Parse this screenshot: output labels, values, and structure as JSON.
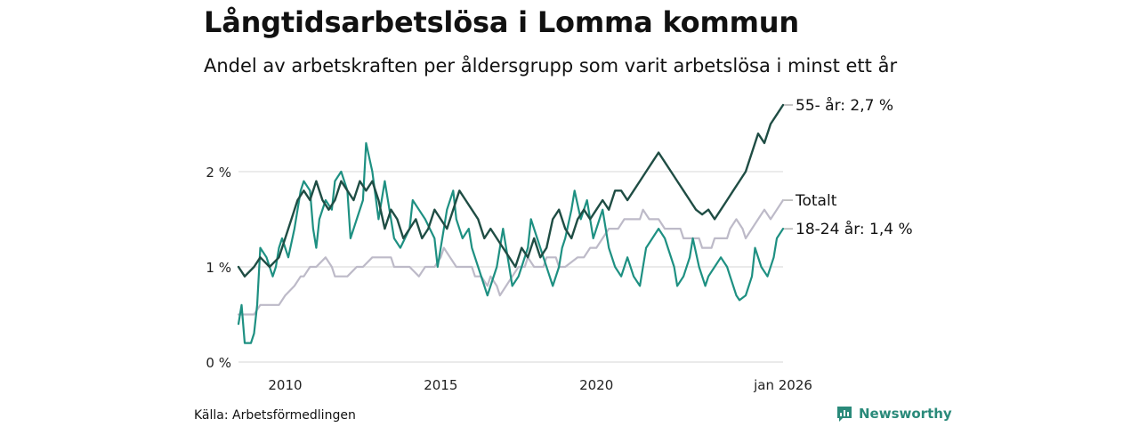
{
  "title": "Långtidsarbetslösa i Lomma kommun",
  "subtitle": "Andel av arbetskraften per åldersgrupp som varit arbetslösa i minst ett år",
  "source": "Källa: Arbetsförmedlingen",
  "brand": "Newsworthy",
  "colors": {
    "age55": "#1f4d44",
    "total": "#bdbac8",
    "age18_24": "#1e9082",
    "grid": "#dddddd",
    "axis_text": "#222222"
  },
  "chart_data": {
    "type": "line",
    "title": "Långtidsarbetslösa i Lomma kommun",
    "xlabel": "",
    "ylabel": "",
    "xlim": [
      2008.5,
      2026.0
    ],
    "ylim": [
      0,
      2.7
    ],
    "y_ticks": [
      {
        "value": 0,
        "label": "0 %"
      },
      {
        "value": 1,
        "label": "1 %"
      },
      {
        "value": 2,
        "label": "2 %"
      }
    ],
    "x_ticks": [
      {
        "value": 2010,
        "label": "2010"
      },
      {
        "value": 2015,
        "label": "2015"
      },
      {
        "value": 2020,
        "label": "2020"
      },
      {
        "value": 2026,
        "label": "jan 2026"
      }
    ],
    "series": [
      {
        "name": "Totalt",
        "label": "Totalt",
        "color_key": "total",
        "points": [
          [
            2008.5,
            0.5
          ],
          [
            2009.0,
            0.5
          ],
          [
            2009.2,
            0.6
          ],
          [
            2009.8,
            0.6
          ],
          [
            2010.0,
            0.7
          ],
          [
            2010.3,
            0.8
          ],
          [
            2010.5,
            0.9
          ],
          [
            2010.6,
            0.9
          ],
          [
            2010.8,
            1.0
          ],
          [
            2011.0,
            1.0
          ],
          [
            2011.3,
            1.1
          ],
          [
            2011.5,
            1.0
          ],
          [
            2011.6,
            0.9
          ],
          [
            2012.0,
            0.9
          ],
          [
            2012.3,
            1.0
          ],
          [
            2012.5,
            1.0
          ],
          [
            2012.8,
            1.1
          ],
          [
            2013.0,
            1.1
          ],
          [
            2013.4,
            1.1
          ],
          [
            2013.5,
            1.0
          ],
          [
            2014.0,
            1.0
          ],
          [
            2014.3,
            0.9
          ],
          [
            2014.5,
            1.0
          ],
          [
            2014.8,
            1.0
          ],
          [
            2015.0,
            1.1
          ],
          [
            2015.1,
            1.2
          ],
          [
            2015.3,
            1.1
          ],
          [
            2015.5,
            1.0
          ],
          [
            2015.8,
            1.0
          ],
          [
            2016.0,
            1.0
          ],
          [
            2016.1,
            0.9
          ],
          [
            2016.3,
            0.9
          ],
          [
            2016.5,
            0.8
          ],
          [
            2016.6,
            0.9
          ],
          [
            2016.8,
            0.8
          ],
          [
            2016.9,
            0.7
          ],
          [
            2017.1,
            0.8
          ],
          [
            2017.3,
            0.9
          ],
          [
            2017.5,
            1.0
          ],
          [
            2017.7,
            1.0
          ],
          [
            2017.8,
            1.1
          ],
          [
            2018.0,
            1.0
          ],
          [
            2018.3,
            1.0
          ],
          [
            2018.4,
            1.1
          ],
          [
            2018.7,
            1.1
          ],
          [
            2018.8,
            1.0
          ],
          [
            2019.0,
            1.0
          ],
          [
            2019.4,
            1.1
          ],
          [
            2019.6,
            1.1
          ],
          [
            2019.8,
            1.2
          ],
          [
            2020.0,
            1.2
          ],
          [
            2020.2,
            1.3
          ],
          [
            2020.4,
            1.4
          ],
          [
            2020.7,
            1.4
          ],
          [
            2020.9,
            1.5
          ],
          [
            2021.4,
            1.5
          ],
          [
            2021.5,
            1.6
          ],
          [
            2021.7,
            1.5
          ],
          [
            2022.0,
            1.5
          ],
          [
            2022.2,
            1.4
          ],
          [
            2022.7,
            1.4
          ],
          [
            2022.8,
            1.3
          ],
          [
            2023.3,
            1.3
          ],
          [
            2023.4,
            1.2
          ],
          [
            2023.7,
            1.2
          ],
          [
            2023.8,
            1.3
          ],
          [
            2024.2,
            1.3
          ],
          [
            2024.3,
            1.4
          ],
          [
            2024.5,
            1.5
          ],
          [
            2024.7,
            1.4
          ],
          [
            2024.8,
            1.3
          ],
          [
            2025.0,
            1.4
          ],
          [
            2025.2,
            1.5
          ],
          [
            2025.4,
            1.6
          ],
          [
            2025.6,
            1.5
          ],
          [
            2025.8,
            1.6
          ],
          [
            2026.0,
            1.7
          ]
        ]
      },
      {
        "name": "18-24 år",
        "label": "18-24 år: 1,4 %",
        "color_key": "age18_24",
        "points": [
          [
            2008.5,
            0.4
          ],
          [
            2008.6,
            0.6
          ],
          [
            2008.7,
            0.2
          ],
          [
            2008.9,
            0.2
          ],
          [
            2009.0,
            0.3
          ],
          [
            2009.1,
            0.6
          ],
          [
            2009.2,
            1.2
          ],
          [
            2009.4,
            1.1
          ],
          [
            2009.6,
            0.9
          ],
          [
            2009.7,
            1.0
          ],
          [
            2009.8,
            1.2
          ],
          [
            2009.9,
            1.3
          ],
          [
            2010.0,
            1.2
          ],
          [
            2010.1,
            1.1
          ],
          [
            2010.3,
            1.4
          ],
          [
            2010.5,
            1.8
          ],
          [
            2010.6,
            1.9
          ],
          [
            2010.8,
            1.8
          ],
          [
            2010.9,
            1.4
          ],
          [
            2011.0,
            1.2
          ],
          [
            2011.1,
            1.5
          ],
          [
            2011.3,
            1.7
          ],
          [
            2011.5,
            1.6
          ],
          [
            2011.6,
            1.9
          ],
          [
            2011.8,
            2.0
          ],
          [
            2012.0,
            1.8
          ],
          [
            2012.1,
            1.3
          ],
          [
            2012.3,
            1.5
          ],
          [
            2012.5,
            1.7
          ],
          [
            2012.6,
            2.3
          ],
          [
            2012.8,
            2.0
          ],
          [
            2013.0,
            1.5
          ],
          [
            2013.2,
            1.9
          ],
          [
            2013.3,
            1.7
          ],
          [
            2013.5,
            1.3
          ],
          [
            2013.7,
            1.2
          ],
          [
            2014.0,
            1.4
          ],
          [
            2014.1,
            1.7
          ],
          [
            2014.3,
            1.6
          ],
          [
            2014.5,
            1.5
          ],
          [
            2014.8,
            1.3
          ],
          [
            2014.9,
            1.0
          ],
          [
            2015.0,
            1.2
          ],
          [
            2015.2,
            1.6
          ],
          [
            2015.4,
            1.8
          ],
          [
            2015.5,
            1.5
          ],
          [
            2015.7,
            1.3
          ],
          [
            2015.9,
            1.4
          ],
          [
            2016.0,
            1.2
          ],
          [
            2016.2,
            1.0
          ],
          [
            2016.4,
            0.8
          ],
          [
            2016.5,
            0.7
          ],
          [
            2016.6,
            0.8
          ],
          [
            2016.8,
            1.0
          ],
          [
            2016.9,
            1.2
          ],
          [
            2017.0,
            1.4
          ],
          [
            2017.2,
            1.0
          ],
          [
            2017.3,
            0.8
          ],
          [
            2017.5,
            0.9
          ],
          [
            2017.6,
            1.0
          ],
          [
            2017.8,
            1.2
          ],
          [
            2017.9,
            1.5
          ],
          [
            2018.1,
            1.3
          ],
          [
            2018.3,
            1.1
          ],
          [
            2018.5,
            0.9
          ],
          [
            2018.6,
            0.8
          ],
          [
            2018.8,
            1.0
          ],
          [
            2018.9,
            1.2
          ],
          [
            2019.0,
            1.3
          ],
          [
            2019.2,
            1.6
          ],
          [
            2019.3,
            1.8
          ],
          [
            2019.5,
            1.5
          ],
          [
            2019.7,
            1.7
          ],
          [
            2019.8,
            1.5
          ],
          [
            2019.9,
            1.3
          ],
          [
            2020.1,
            1.5
          ],
          [
            2020.2,
            1.6
          ],
          [
            2020.4,
            1.2
          ],
          [
            2020.6,
            1.0
          ],
          [
            2020.8,
            0.9
          ],
          [
            2020.9,
            1.0
          ],
          [
            2021.0,
            1.1
          ],
          [
            2021.2,
            0.9
          ],
          [
            2021.4,
            0.8
          ],
          [
            2021.5,
            1.0
          ],
          [
            2021.6,
            1.2
          ],
          [
            2021.8,
            1.3
          ],
          [
            2022.0,
            1.4
          ],
          [
            2022.2,
            1.3
          ],
          [
            2022.3,
            1.2
          ],
          [
            2022.5,
            1.0
          ],
          [
            2022.6,
            0.8
          ],
          [
            2022.8,
            0.9
          ],
          [
            2023.0,
            1.1
          ],
          [
            2023.1,
            1.3
          ],
          [
            2023.3,
            1.0
          ],
          [
            2023.5,
            0.8
          ],
          [
            2023.6,
            0.9
          ],
          [
            2023.8,
            1.0
          ],
          [
            2024.0,
            1.1
          ],
          [
            2024.2,
            1.0
          ],
          [
            2024.3,
            0.9
          ],
          [
            2024.5,
            0.7
          ],
          [
            2024.6,
            0.65
          ],
          [
            2024.8,
            0.7
          ],
          [
            2025.0,
            0.9
          ],
          [
            2025.1,
            1.2
          ],
          [
            2025.3,
            1.0
          ],
          [
            2025.5,
            0.9
          ],
          [
            2025.7,
            1.1
          ],
          [
            2025.8,
            1.3
          ],
          [
            2026.0,
            1.4
          ]
        ]
      },
      {
        "name": "55- år",
        "label": "55- år: 2,7 %",
        "color_key": "age55",
        "points": [
          [
            2008.5,
            1.0
          ],
          [
            2008.7,
            0.9
          ],
          [
            2009.0,
            1.0
          ],
          [
            2009.2,
            1.1
          ],
          [
            2009.5,
            1.0
          ],
          [
            2009.8,
            1.1
          ],
          [
            2010.0,
            1.3
          ],
          [
            2010.2,
            1.5
          ],
          [
            2010.4,
            1.7
          ],
          [
            2010.6,
            1.8
          ],
          [
            2010.8,
            1.7
          ],
          [
            2011.0,
            1.9
          ],
          [
            2011.2,
            1.7
          ],
          [
            2011.4,
            1.6
          ],
          [
            2011.6,
            1.7
          ],
          [
            2011.8,
            1.9
          ],
          [
            2012.0,
            1.8
          ],
          [
            2012.2,
            1.7
          ],
          [
            2012.4,
            1.9
          ],
          [
            2012.6,
            1.8
          ],
          [
            2012.8,
            1.9
          ],
          [
            2013.0,
            1.7
          ],
          [
            2013.2,
            1.4
          ],
          [
            2013.4,
            1.6
          ],
          [
            2013.6,
            1.5
          ],
          [
            2013.8,
            1.3
          ],
          [
            2014.0,
            1.4
          ],
          [
            2014.2,
            1.5
          ],
          [
            2014.4,
            1.3
          ],
          [
            2014.6,
            1.4
          ],
          [
            2014.8,
            1.6
          ],
          [
            2015.0,
            1.5
          ],
          [
            2015.2,
            1.4
          ],
          [
            2015.4,
            1.6
          ],
          [
            2015.6,
            1.8
          ],
          [
            2015.8,
            1.7
          ],
          [
            2016.0,
            1.6
          ],
          [
            2016.2,
            1.5
          ],
          [
            2016.4,
            1.3
          ],
          [
            2016.6,
            1.4
          ],
          [
            2016.8,
            1.3
          ],
          [
            2017.0,
            1.2
          ],
          [
            2017.2,
            1.1
          ],
          [
            2017.4,
            1.0
          ],
          [
            2017.6,
            1.2
          ],
          [
            2017.8,
            1.1
          ],
          [
            2018.0,
            1.3
          ],
          [
            2018.2,
            1.1
          ],
          [
            2018.4,
            1.2
          ],
          [
            2018.6,
            1.5
          ],
          [
            2018.8,
            1.6
          ],
          [
            2019.0,
            1.4
          ],
          [
            2019.2,
            1.3
          ],
          [
            2019.4,
            1.5
          ],
          [
            2019.6,
            1.6
          ],
          [
            2019.8,
            1.5
          ],
          [
            2020.0,
            1.6
          ],
          [
            2020.2,
            1.7
          ],
          [
            2020.4,
            1.6
          ],
          [
            2020.6,
            1.8
          ],
          [
            2020.8,
            1.8
          ],
          [
            2021.0,
            1.7
          ],
          [
            2021.2,
            1.8
          ],
          [
            2021.4,
            1.9
          ],
          [
            2021.6,
            2.0
          ],
          [
            2021.8,
            2.1
          ],
          [
            2022.0,
            2.2
          ],
          [
            2022.2,
            2.1
          ],
          [
            2022.4,
            2.0
          ],
          [
            2022.6,
            1.9
          ],
          [
            2022.8,
            1.8
          ],
          [
            2023.0,
            1.7
          ],
          [
            2023.2,
            1.6
          ],
          [
            2023.4,
            1.55
          ],
          [
            2023.6,
            1.6
          ],
          [
            2023.8,
            1.5
          ],
          [
            2024.0,
            1.6
          ],
          [
            2024.2,
            1.7
          ],
          [
            2024.4,
            1.8
          ],
          [
            2024.6,
            1.9
          ],
          [
            2024.8,
            2.0
          ],
          [
            2025.0,
            2.2
          ],
          [
            2025.2,
            2.4
          ],
          [
            2025.4,
            2.3
          ],
          [
            2025.6,
            2.5
          ],
          [
            2025.8,
            2.6
          ],
          [
            2026.0,
            2.7
          ]
        ]
      }
    ],
    "legend_position": "right-end labels"
  }
}
